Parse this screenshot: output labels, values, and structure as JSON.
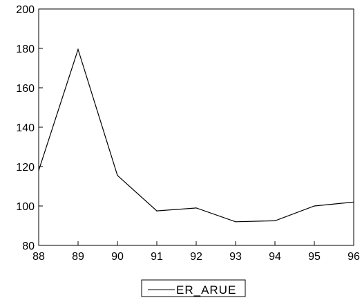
{
  "chart_data": {
    "type": "line",
    "title": "",
    "xlabel": "",
    "ylabel": "",
    "x": [
      "88",
      "89",
      "90",
      "91",
      "92",
      "93",
      "94",
      "95",
      "96"
    ],
    "series": [
      {
        "name": "ER_ARUE",
        "values": [
          118,
          179.5,
          115.5,
          97.5,
          99,
          92,
          92.5,
          100,
          102
        ],
        "color": "#000000"
      }
    ],
    "ylim": [
      80,
      200
    ],
    "yticks": [
      "80",
      "100",
      "120",
      "140",
      "160",
      "180",
      "200"
    ],
    "grid": false,
    "legend_position": "bottom-center"
  }
}
